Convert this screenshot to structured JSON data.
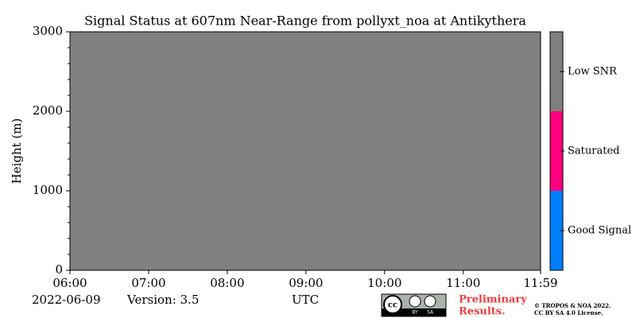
{
  "chart_data": {
    "type": "heatmap",
    "title": "Signal Status at 607nm Near-Range from pollyxt_noa at Antikythera",
    "ylabel": "Height (m)",
    "xlabel": "UTC",
    "xlim": [
      6,
      11.9833
    ],
    "ylim": [
      0,
      3000
    ],
    "xticks": [
      {
        "value": 6,
        "label": "06:00"
      },
      {
        "value": 7,
        "label": "07:00"
      },
      {
        "value": 8,
        "label": "08:00"
      },
      {
        "value": 9,
        "label": "09:00"
      },
      {
        "value": 10,
        "label": "10:00"
      },
      {
        "value": 11,
        "label": "11:00"
      },
      {
        "value": 11.9833,
        "label": "11:59"
      }
    ],
    "yticks": [
      0,
      1000,
      2000,
      3000
    ],
    "yminorticks": [
      200,
      400,
      600,
      800,
      1200,
      1400,
      1600,
      1800,
      2200,
      2400,
      2600,
      2800
    ],
    "x": [
      6,
      11.9833
    ],
    "y": [
      0,
      3000
    ],
    "z": [
      [
        2
      ]
    ],
    "colorbar": {
      "lim": [
        -0.5,
        2.5
      ],
      "categories": [
        "Good Signal",
        "Saturated",
        "Low SNR"
      ],
      "colors": [
        "#0080ff",
        "#ff0080",
        "#808080"
      ],
      "ticks": [
        0,
        1,
        2
      ]
    },
    "date": "2022-06-09",
    "version": "Version: 3.5",
    "notice": [
      "Preliminary",
      "Results."
    ],
    "copyright": [
      "© TROPOS & NOA 2022.",
      "CC BY SA 4.0 License."
    ],
    "badge": [
      "cc",
      "BY",
      "SA"
    ]
  }
}
